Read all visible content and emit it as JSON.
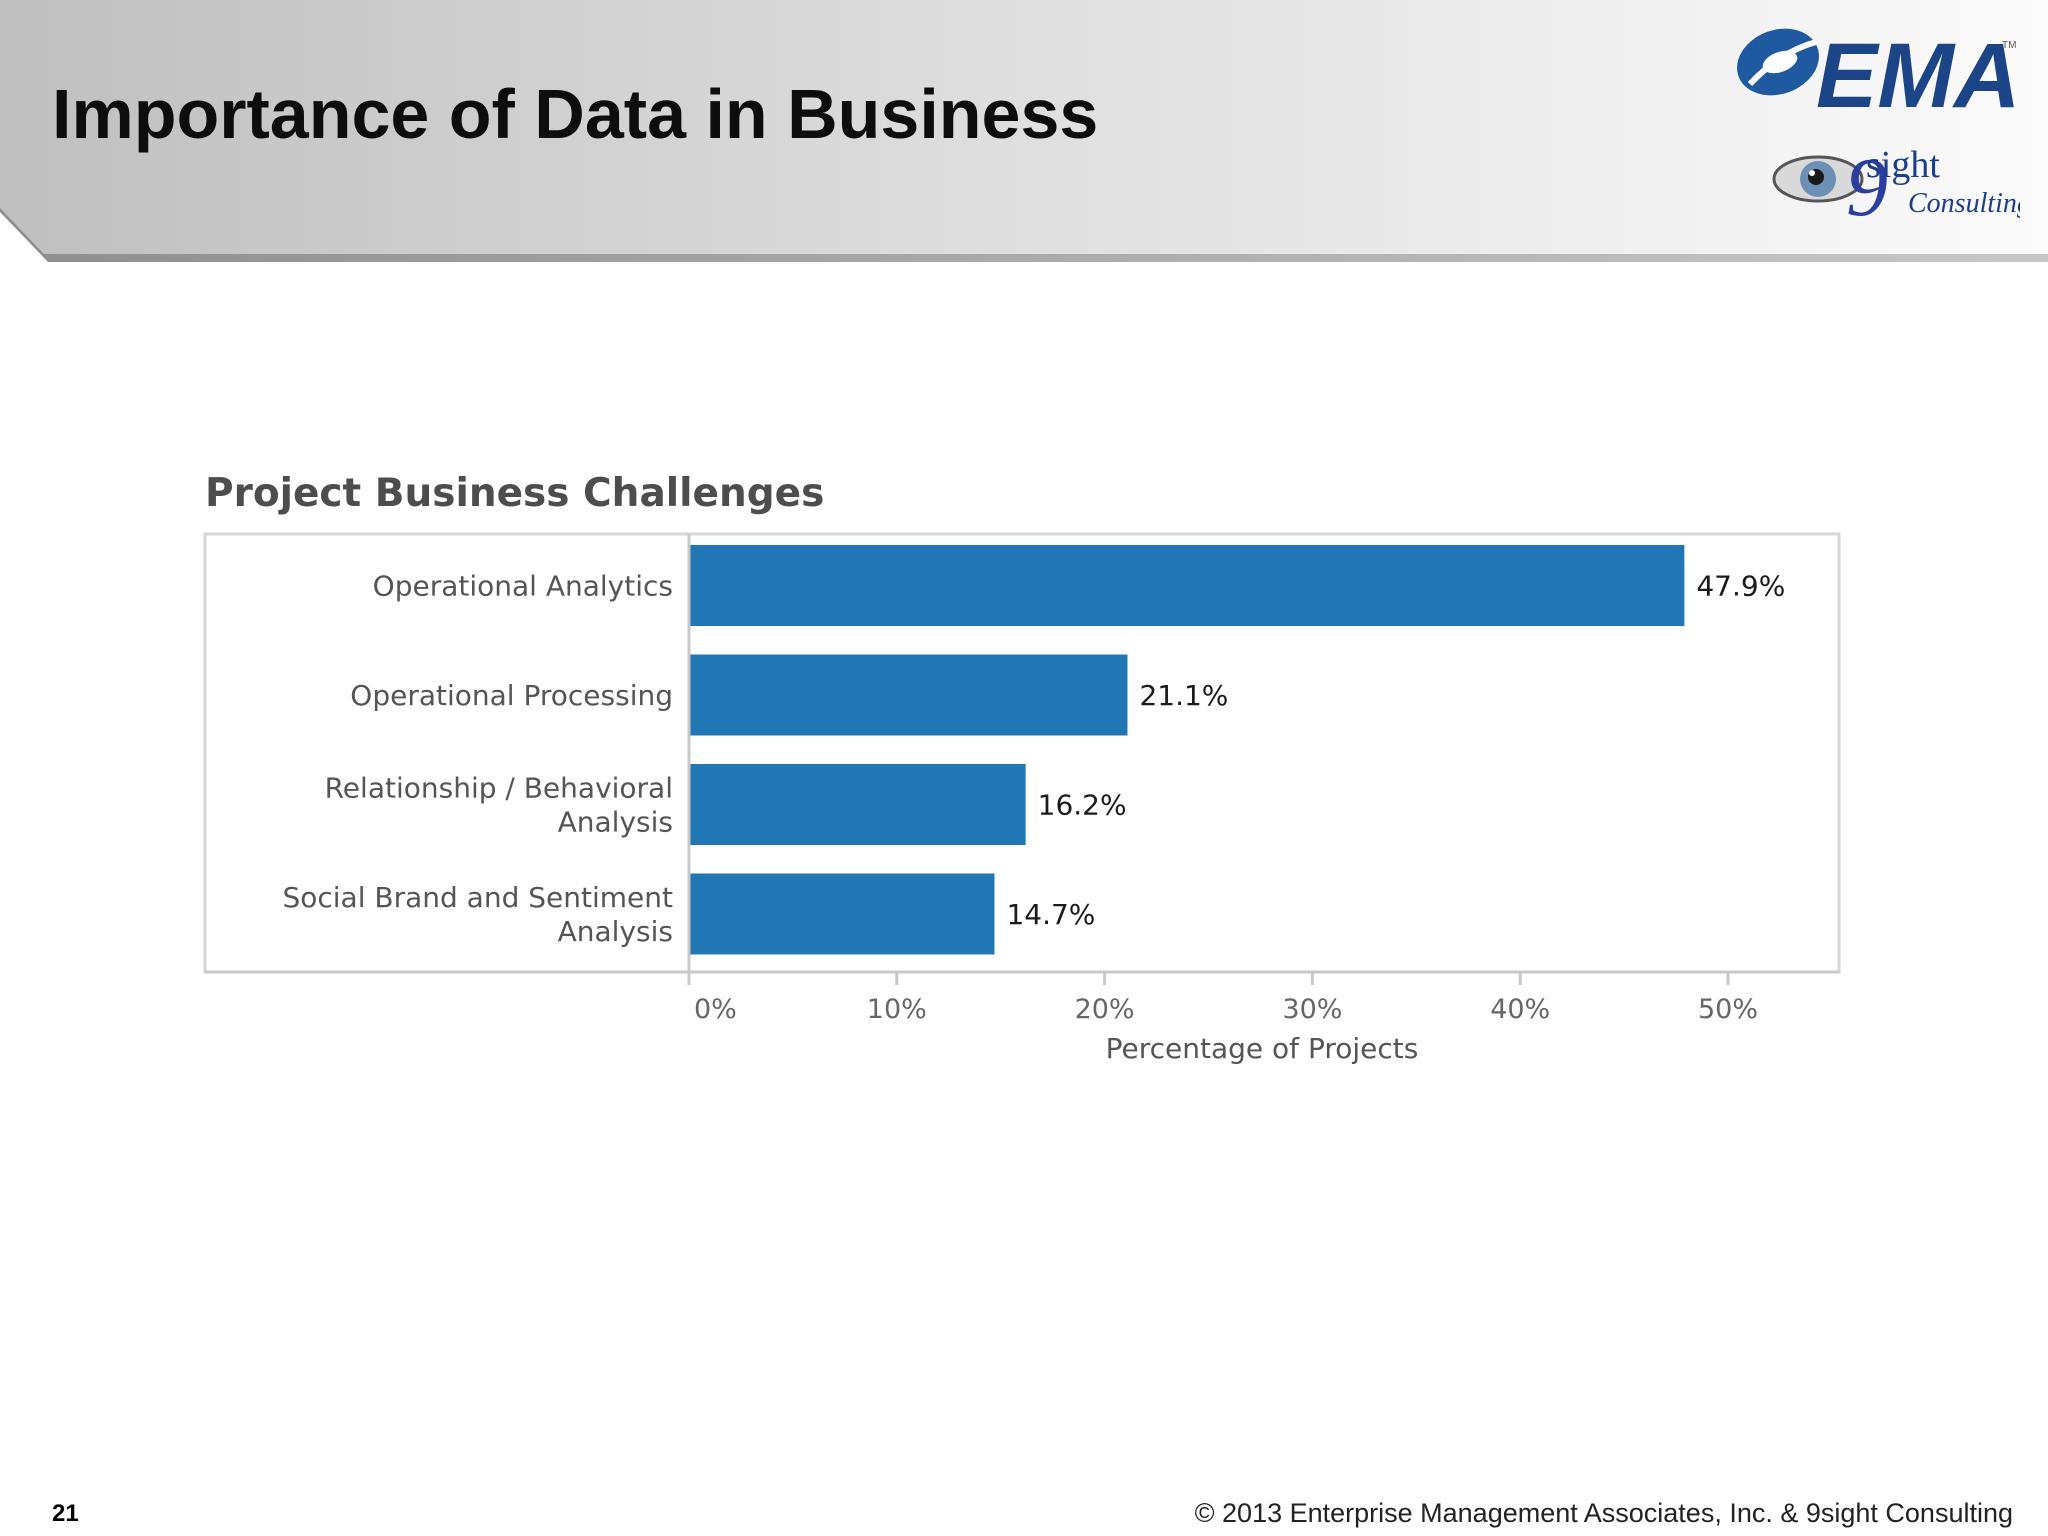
{
  "slide": {
    "title": "Importance of Data in Business",
    "page_number": "21",
    "copyright": "© 2013 Enterprise Management Associates, Inc. & 9sight Consulting"
  },
  "logos": {
    "ema_text": "EMA",
    "ema_trademark": "TM",
    "ninesight_digit": "9",
    "ninesight_sight": "sight",
    "ninesight_consulting": "Consulting"
  },
  "colors": {
    "bar": "#2077b4",
    "brand_blue": "#1c4587"
  },
  "chart_data": {
    "type": "bar",
    "orientation": "horizontal",
    "title": "Project Business Challenges",
    "xlabel": "Percentage of Projects",
    "ylabel": "",
    "xlim": [
      0,
      50
    ],
    "ticks": [
      "0%",
      "10%",
      "20%",
      "30%",
      "40%",
      "50%"
    ],
    "categories": [
      [
        "Operational Analytics"
      ],
      [
        "Operational Processing"
      ],
      [
        "Relationship / Behavioral",
        "Analysis"
      ],
      [
        "Social Brand and Sentiment",
        "Analysis"
      ]
    ],
    "values": [
      47.9,
      21.1,
      16.2,
      14.7
    ],
    "value_labels": [
      "47.9%",
      "21.1%",
      "16.2%",
      "14.7%"
    ],
    "grid": false,
    "legend": "none"
  }
}
